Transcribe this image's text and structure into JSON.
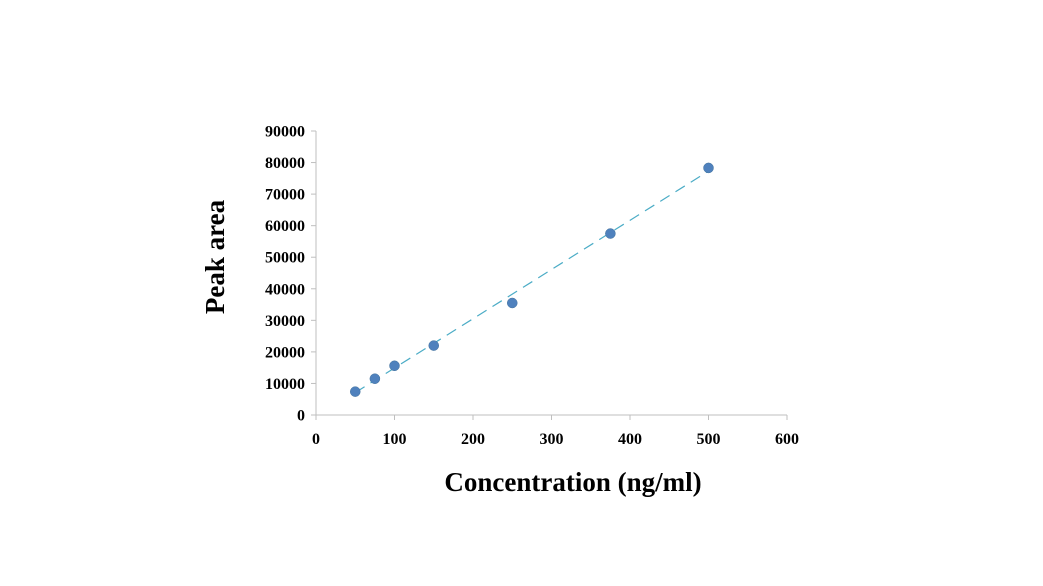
{
  "chart_data": {
    "type": "scatter",
    "title": "",
    "xlabel": "Concentration (ng/ml)",
    "ylabel": "Peak area",
    "xlim": [
      0,
      600
    ],
    "ylim": [
      0,
      90000
    ],
    "x_ticks": [
      "0",
      "100",
      "200",
      "300",
      "400",
      "500",
      "600"
    ],
    "y_ticks": [
      "0",
      "10000",
      "20000",
      "30000",
      "40000",
      "50000",
      "60000",
      "70000",
      "80000",
      "90000"
    ],
    "grid": false,
    "legend": false,
    "series": [
      {
        "x": [
          50,
          75,
          100,
          150,
          250,
          375,
          500
        ],
        "y": [
          7400,
          11500,
          15600,
          22000,
          35500,
          57500,
          78300
        ]
      }
    ],
    "trendline": {
      "type": "linear",
      "style": "dashed",
      "x_range": [
        50,
        500
      ],
      "y_at_start": 7100,
      "y_at_end": 77300
    },
    "colors": {
      "marker": "#4f81bd",
      "trendline": "#4bacc6",
      "axis": "#bfbfbf"
    }
  }
}
